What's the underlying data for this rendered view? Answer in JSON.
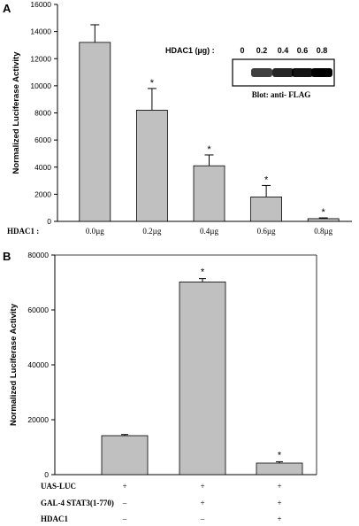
{
  "chart_data": [
    {
      "type": "bar",
      "panel": "A",
      "ylabel": "Normalized Luciferase Activity",
      "ylim": [
        0,
        16000
      ],
      "yticks": [
        "0",
        "2000",
        "4000",
        "6000",
        "8000",
        "10000",
        "12000",
        "14000",
        "16000"
      ],
      "row_label": "HDAC1 :",
      "categories": [
        "0.0µg",
        "0.2µg",
        "0.4µg",
        "0.6µg",
        "0.8µg"
      ],
      "values": [
        13200,
        8200,
        4100,
        1800,
        200
      ],
      "errors": [
        1300,
        1600,
        800,
        850,
        60
      ],
      "significance": [
        "",
        "*",
        "*",
        "*",
        "*"
      ],
      "bar_color": "#c0c0c0",
      "inset": {
        "header": "HDAC1 (µg) :",
        "lane_labels": [
          "0",
          "0.2",
          "0.4",
          "0.6",
          "0.8"
        ],
        "caption": "Blot: anti- FLAG"
      }
    },
    {
      "type": "bar",
      "panel": "B",
      "ylabel": "Normalized Luciferase Activity",
      "ylim": [
        0,
        80000
      ],
      "yticks": [
        "0",
        "20000",
        "40000",
        "60000",
        "80000"
      ],
      "values": [
        14200,
        70200,
        4200
      ],
      "errors": [
        400,
        1200,
        500
      ],
      "significance": [
        "",
        "*",
        "*"
      ],
      "bar_color": "#c0c0c0",
      "conditions": [
        {
          "label": "UAS-LUC",
          "marks": [
            "+",
            "+",
            "+"
          ]
        },
        {
          "label": "GAL-4 STAT3(1-770)",
          "marks": [
            "–",
            "+",
            "+"
          ]
        },
        {
          "label": "HDAC1",
          "marks": [
            "–",
            "–",
            "+"
          ]
        }
      ]
    }
  ]
}
